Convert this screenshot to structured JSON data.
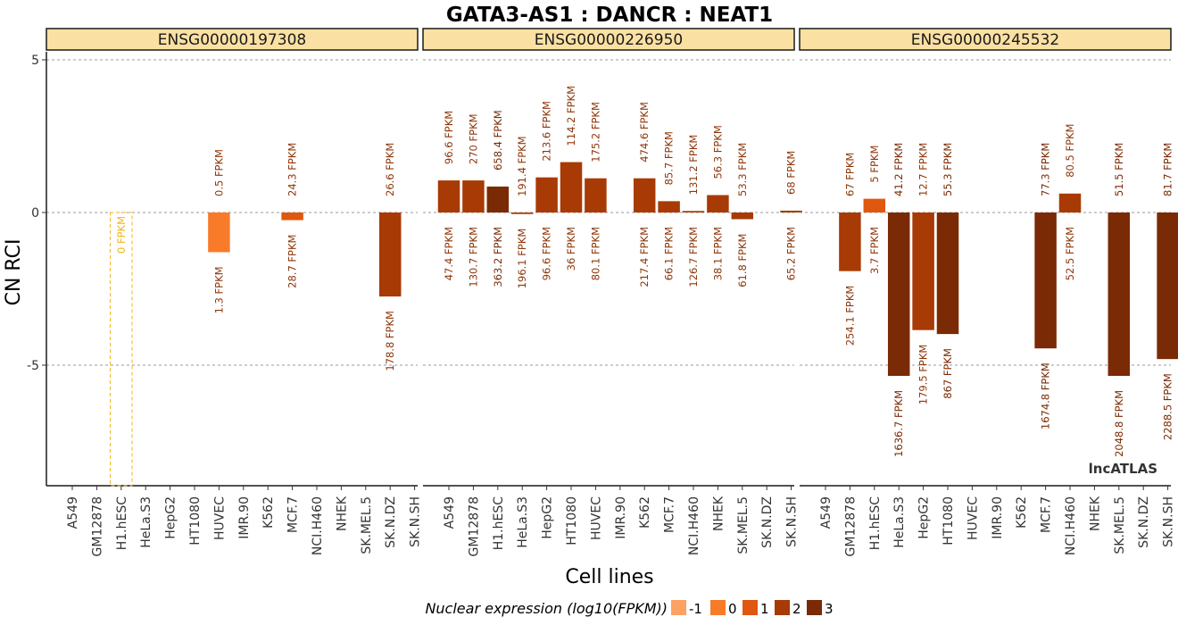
{
  "chart_data": {
    "type": "bar",
    "title": "GATA3-AS1 : DANCR : NEAT1",
    "xlabel": "Cell lines",
    "ylabel": "CN RCI",
    "ylim": [
      -9,
      5.2
    ],
    "yticks": [
      5,
      0,
      -5
    ],
    "grid": "dashed horizontal",
    "watermark": "lncATLAS",
    "categories": [
      "A549",
      "GM12878",
      "H1.hESC",
      "HeLa.S3",
      "HepG2",
      "HT1080",
      "HUVEC",
      "IMR.90",
      "K562",
      "MCF.7",
      "NCI.H460",
      "NHEK",
      "SK.MEL.5",
      "SK.N.DZ",
      "SK.N.SH"
    ],
    "legend": {
      "title": "Nuclear expression (log10(FPKM))",
      "placement": "bottom",
      "items": [
        {
          "label": "-1",
          "color": "#fda262"
        },
        {
          "label": "0",
          "color": "#f87b2a"
        },
        {
          "label": "1",
          "color": "#e0570f"
        },
        {
          "label": "2",
          "color": "#a83a05"
        },
        {
          "label": "3",
          "color": "#7a2a04"
        }
      ]
    },
    "panels": [
      {
        "gene": "ENSG00000197308",
        "bars": [
          {
            "cell": "H1.hESC",
            "value": 0,
            "nuc_log": -1,
            "top_label": "",
            "bottom_label": "0 FPKM",
            "dashed": true
          },
          {
            "cell": "HUVEC",
            "value": -1.3,
            "nuc_log": 0.11,
            "top_label": "0.5 FPKM",
            "bottom_label": "1.3 FPKM"
          },
          {
            "cell": "MCF.7",
            "value": -0.25,
            "nuc_log": 1.46,
            "top_label": "24.3 FPKM",
            "bottom_label": "28.7 FPKM"
          },
          {
            "cell": "SK.N.DZ",
            "value": -2.75,
            "nuc_log": 2.25,
            "top_label": "26.6 FPKM",
            "bottom_label": "178.8 FPKM"
          }
        ]
      },
      {
        "gene": "ENSG00000226950",
        "bars": [
          {
            "cell": "A549",
            "value": 1.05,
            "nuc_log": 1.68,
            "top_label": "96.6 FPKM",
            "bottom_label": "47.4 FPKM"
          },
          {
            "cell": "GM12878",
            "value": 1.05,
            "nuc_log": 2.12,
            "top_label": "270 FPKM",
            "bottom_label": "130.7 FPKM"
          },
          {
            "cell": "H1.hESC",
            "value": 0.85,
            "nuc_log": 2.56,
            "top_label": "658.4 FPKM",
            "bottom_label": "363.2 FPKM"
          },
          {
            "cell": "HeLa.S3",
            "value": -0.05,
            "nuc_log": 2.29,
            "top_label": "191.4 FPKM",
            "bottom_label": "196.1 FPKM"
          },
          {
            "cell": "HepG2",
            "value": 1.15,
            "nuc_log": 1.98,
            "top_label": "213.6 FPKM",
            "bottom_label": "96.6 FPKM"
          },
          {
            "cell": "HT1080",
            "value": 1.65,
            "nuc_log": 1.56,
            "top_label": "114.2 FPKM",
            "bottom_label": "36 FPKM"
          },
          {
            "cell": "HUVEC",
            "value": 1.12,
            "nuc_log": 1.9,
            "top_label": "175.2 FPKM",
            "bottom_label": "80.1 FPKM"
          },
          {
            "cell": "K562",
            "value": 1.12,
            "nuc_log": 2.34,
            "top_label": "474.6 FPKM",
            "bottom_label": "217.4 FPKM"
          },
          {
            "cell": "MCF.7",
            "value": 0.37,
            "nuc_log": 1.82,
            "top_label": "85.7 FPKM",
            "bottom_label": "66.1 FPKM"
          },
          {
            "cell": "NCI.H460",
            "value": 0.05,
            "nuc_log": 2.1,
            "top_label": "131.2 FPKM",
            "bottom_label": "126.7 FPKM"
          },
          {
            "cell": "NHEK",
            "value": 0.57,
            "nuc_log": 1.58,
            "top_label": "56.3 FPKM",
            "bottom_label": "38.1 FPKM"
          },
          {
            "cell": "SK.MEL.5",
            "value": -0.22,
            "nuc_log": 1.79,
            "top_label": "53.3 FPKM",
            "bottom_label": "61.8 FPKM"
          },
          {
            "cell": "SK.N.SH",
            "value": 0.06,
            "nuc_log": 1.81,
            "top_label": "68 FPKM",
            "bottom_label": "65.2 FPKM"
          }
        ]
      },
      {
        "gene": "ENSG00000245532",
        "bars": [
          {
            "cell": "GM12878",
            "value": -1.92,
            "nuc_log": 2.4,
            "top_label": "67 FPKM",
            "bottom_label": "254.1 FPKM"
          },
          {
            "cell": "H1.hESC",
            "value": 0.45,
            "nuc_log": 0.57,
            "top_label": "5 FPKM",
            "bottom_label": "3.7 FPKM"
          },
          {
            "cell": "HeLa.S3",
            "value": -5.35,
            "nuc_log": 3.21,
            "top_label": "41.2 FPKM",
            "bottom_label": "1636.7 FPKM"
          },
          {
            "cell": "HepG2",
            "value": -3.85,
            "nuc_log": 2.25,
            "top_label": "12.7 FPKM",
            "bottom_label": "179.5 FPKM"
          },
          {
            "cell": "HT1080",
            "value": -3.98,
            "nuc_log": 2.94,
            "top_label": "55.3 FPKM",
            "bottom_label": "867 FPKM"
          },
          {
            "cell": "MCF.7",
            "value": -4.45,
            "nuc_log": 3.22,
            "top_label": "77.3 FPKM",
            "bottom_label": "1674.8 FPKM"
          },
          {
            "cell": "NCI.H460",
            "value": 0.62,
            "nuc_log": 1.72,
            "top_label": "80.5 FPKM",
            "bottom_label": "52.5 FPKM"
          },
          {
            "cell": "SK.MEL.5",
            "value": -5.35,
            "nuc_log": 3.31,
            "top_label": "51.5 FPKM",
            "bottom_label": "2048.8 FPKM"
          },
          {
            "cell": "SK.N.SH",
            "value": -4.8,
            "nuc_log": 3.36,
            "top_label": "81.7 FPKM",
            "bottom_label": "2288.5 FPKM"
          }
        ]
      }
    ]
  }
}
